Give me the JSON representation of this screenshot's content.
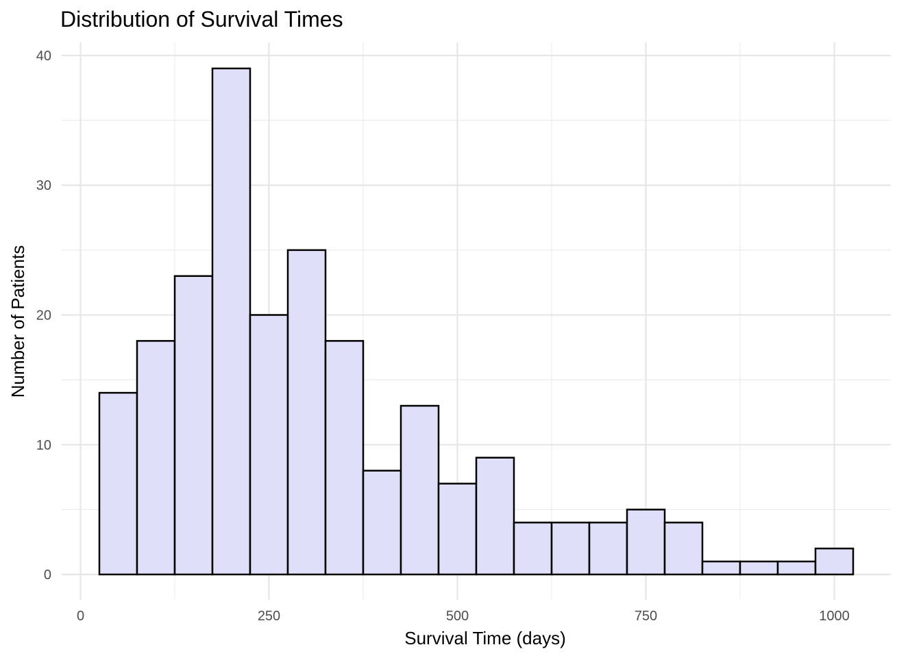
{
  "chart_data": {
    "type": "bar",
    "title": "Distribution of Survival Times",
    "xlabel": "Survival Time (days)",
    "ylabel": "Number of Patients",
    "bin_width": 50,
    "bins": [
      {
        "start": 25,
        "end": 75,
        "count": 14
      },
      {
        "start": 75,
        "end": 125,
        "count": 18
      },
      {
        "start": 125,
        "end": 175,
        "count": 23
      },
      {
        "start": 175,
        "end": 225,
        "count": 39
      },
      {
        "start": 225,
        "end": 275,
        "count": 20
      },
      {
        "start": 275,
        "end": 325,
        "count": 25
      },
      {
        "start": 325,
        "end": 375,
        "count": 18
      },
      {
        "start": 375,
        "end": 425,
        "count": 8
      },
      {
        "start": 425,
        "end": 475,
        "count": 13
      },
      {
        "start": 475,
        "end": 525,
        "count": 7
      },
      {
        "start": 525,
        "end": 575,
        "count": 9
      },
      {
        "start": 575,
        "end": 625,
        "count": 4
      },
      {
        "start": 625,
        "end": 675,
        "count": 4
      },
      {
        "start": 675,
        "end": 725,
        "count": 4
      },
      {
        "start": 725,
        "end": 775,
        "count": 5
      },
      {
        "start": 775,
        "end": 825,
        "count": 4
      },
      {
        "start": 825,
        "end": 875,
        "count": 1
      },
      {
        "start": 875,
        "end": 925,
        "count": 1
      },
      {
        "start": 925,
        "end": 975,
        "count": 1
      },
      {
        "start": 975,
        "end": 1025,
        "count": 2
      }
    ],
    "x_ticks": [
      0,
      250,
      500,
      750,
      1000
    ],
    "y_ticks": [
      0,
      10,
      20,
      30,
      40
    ],
    "xlim": [
      -25,
      1075
    ],
    "ylim": [
      -1.95,
      41
    ],
    "grid": true,
    "legend": "none",
    "colors": {
      "bar_fill": "#dfdff9",
      "bar_stroke": "#000000"
    }
  }
}
